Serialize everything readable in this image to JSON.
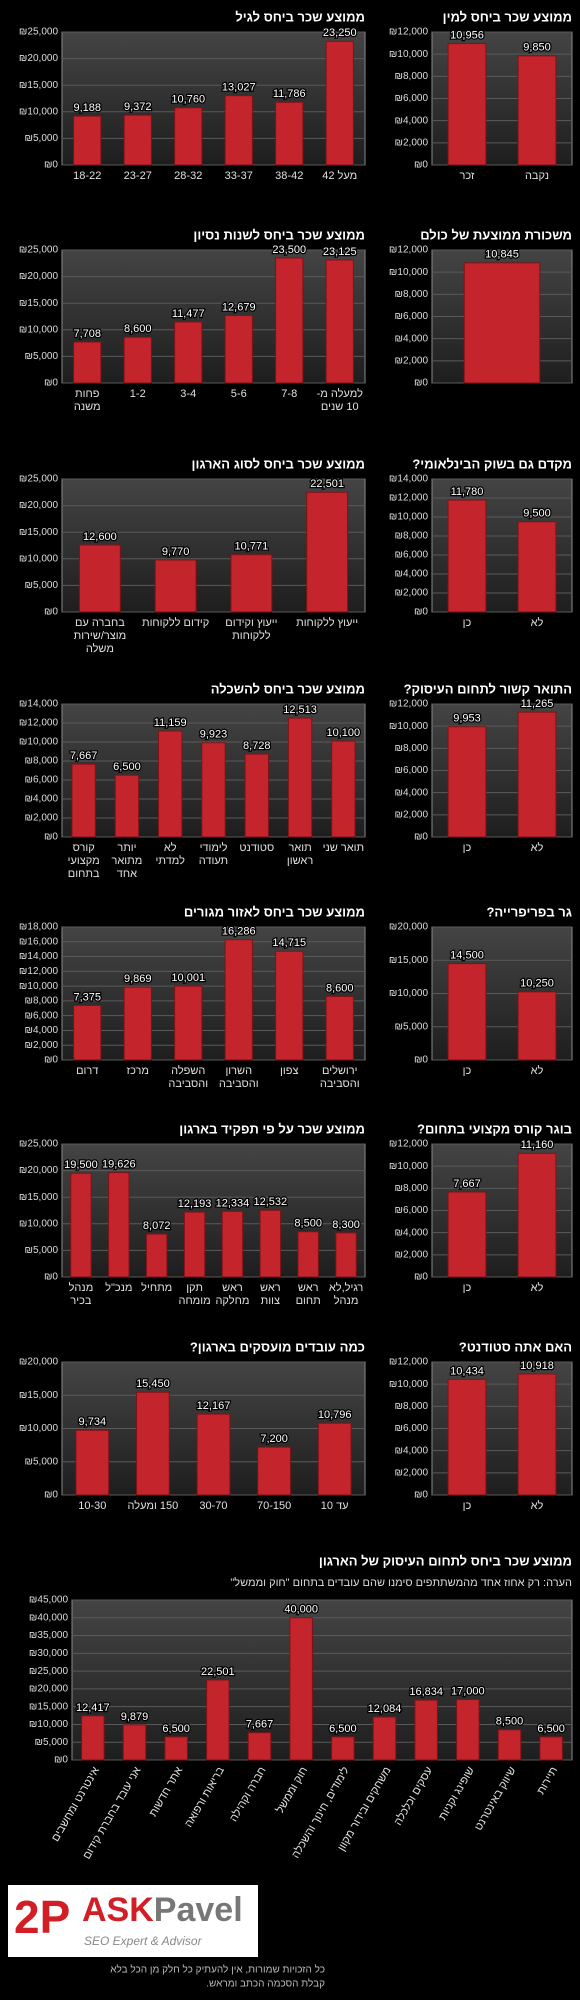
{
  "chart_data": [
    {
      "type": "bar",
      "title": "ממוצע שכר ביחס לגיל",
      "color": "#c4242b",
      "grid": true,
      "categories": [
        "18-22",
        "23-27",
        "28-32",
        "33-37",
        "38-42",
        "מעל 42"
      ],
      "values": [
        9188,
        9372,
        10760,
        13027,
        11786,
        23250
      ],
      "value_labels": [
        "9,188",
        "9,372",
        "10,760",
        "13,027",
        "11,786",
        "23,250"
      ],
      "ylim": [
        0,
        25000
      ],
      "yticks": [
        {
          "value": 0,
          "label": "₪0"
        },
        {
          "value": 5000,
          "label": "₪5,000"
        },
        {
          "value": 10000,
          "label": "₪10,000"
        },
        {
          "value": 15000,
          "label": "₪15,000"
        },
        {
          "value": 20000,
          "label": "₪20,000"
        },
        {
          "value": 25000,
          "label": "₪25,000"
        }
      ]
    },
    {
      "type": "bar",
      "title": "ממוצע שכר ביחס למין",
      "color": "#c4242b",
      "grid": true,
      "categories": [
        "זכר",
        "נקבה"
      ],
      "values": [
        10956,
        9850
      ],
      "value_labels": [
        "10,956",
        "9,850"
      ],
      "ylim": [
        0,
        12000
      ],
      "yticks": [
        {
          "value": 0,
          "label": "₪0"
        },
        {
          "value": 2000,
          "label": "₪2,000"
        },
        {
          "value": 4000,
          "label": "₪4,000"
        },
        {
          "value": 6000,
          "label": "₪6,000"
        },
        {
          "value": 8000,
          "label": "₪8,000"
        },
        {
          "value": 10000,
          "label": "₪10,000"
        },
        {
          "value": 12000,
          "label": "₪12,000"
        }
      ]
    },
    {
      "type": "bar",
      "title": "ממוצע שכר ביחס לשנות נסיון",
      "color": "#c4242b",
      "grid": true,
      "categories": [
        "פחות משנה",
        "1-2",
        "3-4",
        "5-6",
        "7-8",
        "למעלה מ- 10 שנים"
      ],
      "values": [
        7708,
        8600,
        11477,
        12679,
        23500,
        23125
      ],
      "value_labels": [
        "7,708",
        "8,600",
        "11,477",
        "12,679",
        "23,500",
        "23,125"
      ],
      "ylim": [
        0,
        25000
      ],
      "yticks": [
        {
          "value": 0,
          "label": "₪0"
        },
        {
          "value": 5000,
          "label": "₪5,000"
        },
        {
          "value": 10000,
          "label": "₪10,000"
        },
        {
          "value": 15000,
          "label": "₪15,000"
        },
        {
          "value": 20000,
          "label": "₪20,000"
        },
        {
          "value": 25000,
          "label": "₪25,000"
        }
      ]
    },
    {
      "type": "bar",
      "title": "משכורת ממוצעת של כולם",
      "color": "#c4242b",
      "grid": true,
      "categories": [
        null
      ],
      "values": [
        10845
      ],
      "value_labels": [
        "10,845"
      ],
      "ylim": [
        0,
        12000
      ],
      "yticks": [
        {
          "value": 0,
          "label": "₪0"
        },
        {
          "value": 2000,
          "label": "₪2,000"
        },
        {
          "value": 4000,
          "label": "₪4,000"
        },
        {
          "value": 6000,
          "label": "₪6,000"
        },
        {
          "value": 8000,
          "label": "₪8,000"
        },
        {
          "value": 10000,
          "label": "₪10,000"
        },
        {
          "value": 12000,
          "label": "₪12,000"
        }
      ]
    },
    {
      "type": "bar",
      "title": "ממוצע שכר ביחס לסוג הארגון",
      "color": "#c4242b",
      "grid": true,
      "categories": [
        "בחברה עם מוצר/שירות משלה",
        "קידום ללקוחות",
        "ייעוץ וקידום ללקוחות",
        "ייעוץ ללקוחות"
      ],
      "values": [
        12600,
        9770,
        10771,
        22501
      ],
      "value_labels": [
        "12,600",
        "9,770",
        "10,771",
        "22,501"
      ],
      "ylim": [
        0,
        25000
      ],
      "yticks": [
        {
          "value": 0,
          "label": "₪0"
        },
        {
          "value": 5000,
          "label": "₪5,000"
        },
        {
          "value": 10000,
          "label": "₪10,000"
        },
        {
          "value": 15000,
          "label": "₪15,000"
        },
        {
          "value": 20000,
          "label": "₪20,000"
        },
        {
          "value": 25000,
          "label": "₪25,000"
        }
      ]
    },
    {
      "type": "bar",
      "title": "מקדם גם בשוק הבינלאומי?",
      "color": "#c4242b",
      "grid": true,
      "categories": [
        "כן",
        "לא"
      ],
      "values": [
        11780,
        9500
      ],
      "value_labels": [
        "11,780",
        "9,500"
      ],
      "ylim": [
        0,
        14000
      ],
      "yticks": [
        {
          "value": 0,
          "label": "₪0"
        },
        {
          "value": 2000,
          "label": "₪2,000"
        },
        {
          "value": 4000,
          "label": "₪4,000"
        },
        {
          "value": 6000,
          "label": "₪6,000"
        },
        {
          "value": 8000,
          "label": "₪8,000"
        },
        {
          "value": 10000,
          "label": "₪10,000"
        },
        {
          "value": 12000,
          "label": "₪12,000"
        },
        {
          "value": 14000,
          "label": "₪14,000"
        }
      ]
    },
    {
      "type": "bar",
      "title": "ממוצע שכר ביחס להשכלה",
      "color": "#c4242b",
      "grid": true,
      "categories": [
        "קורס מקצועי בתחום",
        "יותר מתואר אחד",
        "לא למדתי",
        "לימודי תעודה",
        "סטודנט",
        "תואר ראשון",
        "תואר שני"
      ],
      "values": [
        7667,
        6500,
        11159,
        9923,
        8728,
        12513,
        10100
      ],
      "value_labels": [
        "7,667",
        "6,500",
        "11,159",
        "9,923",
        "8,728",
        "12,513",
        "10,100"
      ],
      "ylim": [
        0,
        14000
      ],
      "yticks": [
        {
          "value": 0,
          "label": "₪0"
        },
        {
          "value": 2000,
          "label": "₪2,000"
        },
        {
          "value": 4000,
          "label": "₪4,000"
        },
        {
          "value": 6000,
          "label": "₪6,000"
        },
        {
          "value": 8000,
          "label": "₪8,000"
        },
        {
          "value": 10000,
          "label": "₪10,000"
        },
        {
          "value": 12000,
          "label": "₪12,000"
        },
        {
          "value": 14000,
          "label": "₪14,000"
        }
      ]
    },
    {
      "type": "bar",
      "title": "התואר קשור לתחום העיסוק?",
      "color": "#c4242b",
      "grid": true,
      "categories": [
        "כן",
        "לא"
      ],
      "values": [
        9953,
        11265
      ],
      "value_labels": [
        "9,953",
        "11,265"
      ],
      "ylim": [
        0,
        12000
      ],
      "yticks": [
        {
          "value": 0,
          "label": "₪0"
        },
        {
          "value": 2000,
          "label": "₪2,000"
        },
        {
          "value": 4000,
          "label": "₪4,000"
        },
        {
          "value": 6000,
          "label": "₪6,000"
        },
        {
          "value": 8000,
          "label": "₪8,000"
        },
        {
          "value": 10000,
          "label": "₪10,000"
        },
        {
          "value": 12000,
          "label": "₪12,000"
        }
      ]
    },
    {
      "type": "bar",
      "title": "ממוצע שכר ביחס לאזור מגורים",
      "color": "#c4242b",
      "grid": true,
      "categories": [
        "דרום",
        "מרכז",
        "השפלה והסביבה",
        "השרון והסביבה",
        "צפון",
        "ירושלים והסביבה"
      ],
      "values": [
        7375,
        9869,
        10001,
        16286,
        14715,
        8600
      ],
      "value_labels": [
        "7,375",
        "9,869",
        "10,001",
        "16,286",
        "14,715",
        "8,600"
      ],
      "ylim": [
        0,
        18000
      ],
      "yticks": [
        {
          "value": 0,
          "label": "₪0"
        },
        {
          "value": 2000,
          "label": "₪2,000"
        },
        {
          "value": 4000,
          "label": "₪4,000"
        },
        {
          "value": 6000,
          "label": "₪6,000"
        },
        {
          "value": 8000,
          "label": "₪8,000"
        },
        {
          "value": 10000,
          "label": "₪10,000"
        },
        {
          "value": 12000,
          "label": "₪12,000"
        },
        {
          "value": 14000,
          "label": "₪14,000"
        },
        {
          "value": 16000,
          "label": "₪16,000"
        },
        {
          "value": 18000,
          "label": "₪18,000"
        }
      ]
    },
    {
      "type": "bar",
      "title": "גר בפריפרייה?",
      "color": "#c4242b",
      "grid": true,
      "categories": [
        "כן",
        "לא"
      ],
      "values": [
        14500,
        10250
      ],
      "value_labels": [
        "14,500",
        "10,250"
      ],
      "ylim": [
        0,
        20000
      ],
      "yticks": [
        {
          "value": 0,
          "label": "₪0"
        },
        {
          "value": 5000,
          "label": "₪5,000"
        },
        {
          "value": 10000,
          "label": "₪10,000"
        },
        {
          "value": 15000,
          "label": "₪15,000"
        },
        {
          "value": 20000,
          "label": "₪20,000"
        }
      ]
    },
    {
      "type": "bar",
      "title": "ממוצע שכר על פי תפקיד בארגון",
      "color": "#c4242b",
      "grid": true,
      "categories": [
        "מנהל בכיר",
        "מנכ\"ל",
        "מתחיל",
        "תקן מומחה",
        "ראש מחלקה",
        "ראש צוות",
        "ראש תחום",
        "רגיל,לא מנהל"
      ],
      "values": [
        19500,
        19626,
        8072,
        12193,
        12334,
        12532,
        8500,
        8300
      ],
      "value_labels": [
        "19,500",
        "19,626",
        "8,072",
        "12,193",
        "12,334",
        "12,532",
        "8,500",
        "8,300"
      ],
      "ylim": [
        0,
        25000
      ],
      "yticks": [
        {
          "value": 0,
          "label": "₪0"
        },
        {
          "value": 5000,
          "label": "₪5,000"
        },
        {
          "value": 10000,
          "label": "₪10,000"
        },
        {
          "value": 15000,
          "label": "₪15,000"
        },
        {
          "value": 20000,
          "label": "₪20,000"
        },
        {
          "value": 25000,
          "label": "₪25,000"
        }
      ]
    },
    {
      "type": "bar",
      "title": "בוגר קורס מקצועי בתחום?",
      "color": "#c4242b",
      "grid": true,
      "categories": [
        "כן",
        "לא"
      ],
      "values": [
        7667,
        11160
      ],
      "value_labels": [
        "7,667",
        "11,160"
      ],
      "ylim": [
        0,
        12000
      ],
      "yticks": [
        {
          "value": 0,
          "label": "₪0"
        },
        {
          "value": 2000,
          "label": "₪2,000"
        },
        {
          "value": 4000,
          "label": "₪4,000"
        },
        {
          "value": 6000,
          "label": "₪6,000"
        },
        {
          "value": 8000,
          "label": "₪8,000"
        },
        {
          "value": 10000,
          "label": "₪10,000"
        },
        {
          "value": 12000,
          "label": "₪12,000"
        }
      ]
    },
    {
      "type": "bar",
      "title": "כמה עובדים מועסקים בארגון?",
      "color": "#c4242b",
      "grid": true,
      "categories": [
        "10-30",
        "150 ומעלה",
        "30-70",
        "70-150",
        "עד 10"
      ],
      "values": [
        9734,
        15450,
        12167,
        7200,
        10796
      ],
      "value_labels": [
        "9,734",
        "15,450",
        "12,167",
        "7,200",
        "10,796"
      ],
      "ylim": [
        0,
        20000
      ],
      "yticks": [
        {
          "value": 0,
          "label": "₪0"
        },
        {
          "value": 5000,
          "label": "₪5,000"
        },
        {
          "value": 10000,
          "label": "₪10,000"
        },
        {
          "value": 15000,
          "label": "₪15,000"
        },
        {
          "value": 20000,
          "label": "₪20,000"
        }
      ]
    },
    {
      "type": "bar",
      "title": "האם אתה סטודנט?",
      "color": "#c4242b",
      "grid": true,
      "categories": [
        "כן",
        "לא"
      ],
      "values": [
        10434,
        10918
      ],
      "value_labels": [
        "10,434",
        "10,918"
      ],
      "ylim": [
        0,
        12000
      ],
      "yticks": [
        {
          "value": 0,
          "label": "₪0"
        },
        {
          "value": 2000,
          "label": "₪2,000"
        },
        {
          "value": 4000,
          "label": "₪4,000"
        },
        {
          "value": 6000,
          "label": "₪6,000"
        },
        {
          "value": 8000,
          "label": "₪8,000"
        },
        {
          "value": 10000,
          "label": "₪10,000"
        },
        {
          "value": 12000,
          "label": "₪12,000"
        }
      ]
    },
    {
      "type": "bar",
      "title": "ממוצע שכר ביחס לתחום העיסוק של הארגון",
      "note": "הערה: רק אחוז אחד מהמשתתפים סימנו שהם עובדים בתחום \"חוק וממשל\"",
      "color": "#c4242b",
      "grid": true,
      "categories": [
        "אינטרנט ומחשבים",
        "אני עובד בחברת קידום",
        "אתר חדשות",
        "בריאות ורפואה",
        "חברה וקהילה",
        "חוק וממשל",
        "לימודים, חינוך והשכלה",
        "משחקים ובידור מקוון",
        "עסקים וכלכלה",
        "שופינג וקניות",
        "שיווק באינטרנט",
        "תיירות"
      ],
      "values": [
        12417,
        9879,
        6500,
        22501,
        7667,
        40000,
        6500,
        12084,
        16834,
        17000,
        8500,
        6500
      ],
      "value_labels": [
        "12,417",
        "9,879",
        "6,500",
        "22,501",
        "7,667",
        "40,000",
        "6,500",
        "12,084",
        "16,834",
        "17,000",
        "8,500",
        "6,500"
      ],
      "ylim": [
        0,
        45000
      ],
      "yticks": [
        {
          "value": 0,
          "label": "₪0"
        },
        {
          "value": 5000,
          "label": "₪5,000"
        },
        {
          "value": 10000,
          "label": "₪10,000"
        },
        {
          "value": 15000,
          "label": "₪15,000"
        },
        {
          "value": 20000,
          "label": "₪20,000"
        },
        {
          "value": 25000,
          "label": "₪25,000"
        },
        {
          "value": 30000,
          "label": "₪30,000"
        },
        {
          "value": 35000,
          "label": "₪35,000"
        },
        {
          "value": 40000,
          "label": "₪40,000"
        },
        {
          "value": 45000,
          "label": "₪45,000"
        }
      ]
    }
  ],
  "footer": {
    "logo_mark": "2P",
    "brand_ask": "ASK",
    "brand_name": "Pavel",
    "tagline": "SEO Expert & Advisor",
    "copyright": [
      "כל הזכויות שמורות, אין להעתיק כל חלק מן הכל בלא",
      "קבלת הסכמה הכתב ומראש."
    ]
  }
}
